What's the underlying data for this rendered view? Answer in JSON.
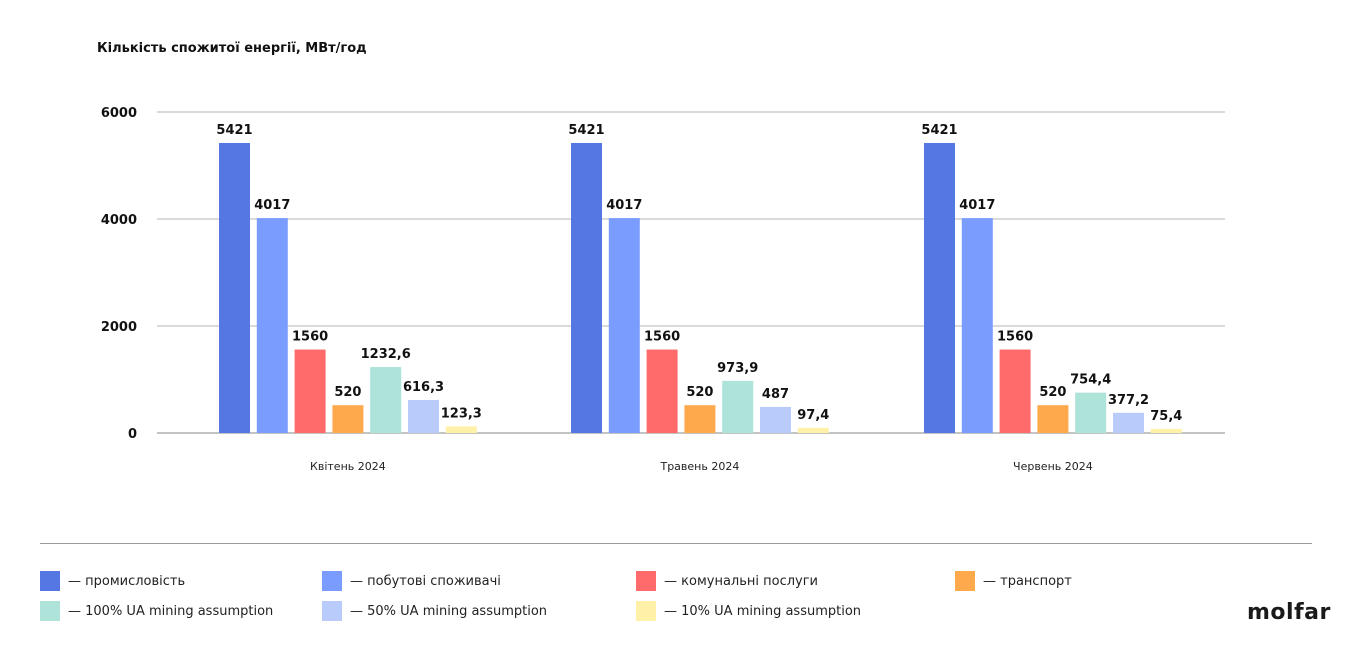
{
  "chart_data": {
    "type": "bar",
    "title": "Кількість спожитої енергії, МВт/год",
    "categories": [
      "Квітень 2024",
      "Травень 2024",
      "Червень 2024"
    ],
    "ylim": [
      0,
      6000
    ],
    "yticks": [
      "0",
      "2000",
      "4000",
      "6000"
    ],
    "grid": true,
    "legend_position": "bottom",
    "series": [
      {
        "name": "промисловість",
        "color": "#5577e3",
        "values": [
          5421,
          5421,
          5421
        ],
        "labels": [
          "5421",
          "5421",
          "5421"
        ]
      },
      {
        "name": "побутові споживачі",
        "color": "#7b9cff",
        "values": [
          4017,
          4017,
          4017
        ],
        "labels": [
          "4017",
          "4017",
          "4017"
        ]
      },
      {
        "name": "комунальні послуги",
        "color": "#ff6b6b",
        "values": [
          1560,
          1560,
          1560
        ],
        "labels": [
          "1560",
          "1560",
          "1560"
        ]
      },
      {
        "name": "транспорт",
        "color": "#ffa94d",
        "values": [
          520,
          520,
          520
        ],
        "labels": [
          "520",
          "520",
          "520"
        ]
      },
      {
        "name": "100% UA mining assumption",
        "color": "#ade3d9",
        "values": [
          1232.6,
          973.9,
          754.4
        ],
        "labels": [
          "1232,6",
          "973,9",
          "754,4"
        ]
      },
      {
        "name": "50% UA mining assumption",
        "color": "#b9cbfb",
        "values": [
          616.3,
          487,
          377.2
        ],
        "labels": [
          "616,3",
          "487",
          "377,2"
        ]
      },
      {
        "name": "10% UA mining assumption",
        "color": "#fff1a8",
        "values": [
          123.3,
          97.4,
          75.4
        ],
        "labels": [
          "123,3",
          "97,4",
          "75,4"
        ]
      }
    ]
  },
  "legend": [
    {
      "label": "— промисловість",
      "color": "#5577e3"
    },
    {
      "label": "— побутові споживачі",
      "color": "#7b9cff"
    },
    {
      "label": "— комунальні послуги",
      "color": "#ff6b6b"
    },
    {
      "label": "— транспорт",
      "color": "#ffa94d"
    },
    {
      "label": "— 100% UA mining assumption",
      "color": "#ade3d9"
    },
    {
      "label": "— 50% UA mining assumption",
      "color": "#b9cbfb"
    },
    {
      "label": "— 10% UA mining assumption",
      "color": "#fff1a8"
    }
  ],
  "brand": {
    "logo_text": "molfar"
  }
}
